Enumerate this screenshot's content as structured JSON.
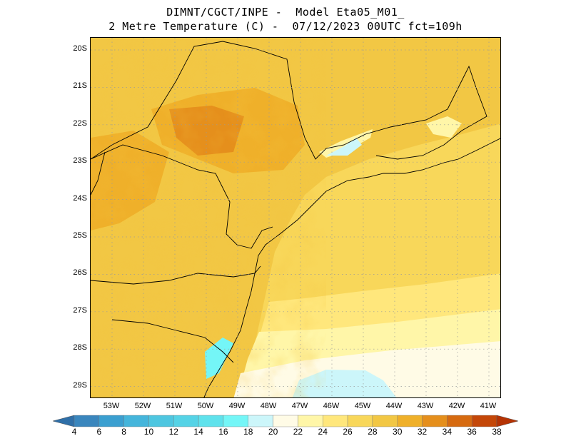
{
  "title": {
    "line1": "DIMNT/CGCT/INPE -  Model Eta05_M01_",
    "line2": "2 Metre Temperature (C) -  07/12/2023 00UTC fct=109h"
  },
  "map": {
    "lat_labels": [
      "20S",
      "21S",
      "22S",
      "23S",
      "24S",
      "25S",
      "26S",
      "27S",
      "28S",
      "29S"
    ],
    "lon_labels": [
      "53W",
      "52W",
      "51W",
      "50W",
      "49W",
      "48W",
      "47W",
      "46W",
      "45W",
      "44W",
      "43W",
      "42W",
      "41W"
    ],
    "grid": "dotted",
    "field": "2 Metre Temperature (C)"
  },
  "colorbar": {
    "labels": [
      "4",
      "6",
      "8",
      "10",
      "12",
      "14",
      "16",
      "18",
      "20",
      "22",
      "24",
      "26",
      "28",
      "30",
      "32",
      "34",
      "36",
      "38"
    ],
    "colors": [
      "#2f6fa8",
      "#3a86bd",
      "#3b9fd0",
      "#45b5db",
      "#4ec6e0",
      "#55d3e6",
      "#5fe2ec",
      "#74f6f7",
      "#ccf6fa",
      "#fffbe6",
      "#fff6a8",
      "#ffe77c",
      "#f8d75a",
      "#f2c744",
      "#efb02a",
      "#e58f1c",
      "#d66a10",
      "#c44708",
      "#b53304"
    ]
  }
}
